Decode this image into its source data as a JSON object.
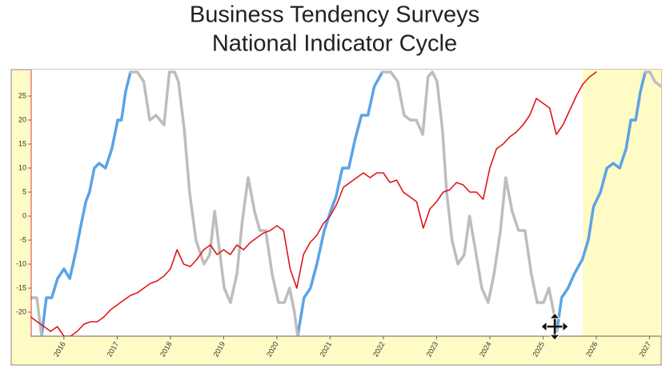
{
  "chart_data": {
    "type": "line",
    "title": [
      "Business Tendency Surveys",
      "National Indicator Cycle"
    ],
    "xlim": [
      2015.37,
      2027.22
    ],
    "ylim": [
      -25,
      30.5
    ],
    "xticks": [
      2016,
      2017,
      2018,
      2019,
      2020,
      2021,
      2022,
      2023,
      2024,
      2025,
      2026,
      2027
    ],
    "yticks": [
      -20,
      -15,
      -10,
      -5,
      0,
      5,
      10,
      15,
      20,
      25
    ],
    "shaded_from": 2025.75,
    "shade_color": "#fffbc4",
    "series": [
      {
        "color": "#5ba3e6",
        "x": [
          2015.58,
          2015.67,
          2015.77,
          2015.88,
          2016.0,
          2016.11,
          2016.23,
          2016.3,
          2016.41,
          2016.48,
          2016.57,
          2016.66,
          2016.78,
          2016.9,
          2017.01,
          2017.08,
          2017.16,
          2017.25,
          null,
          2020.39,
          2020.51,
          2020.63,
          2020.75,
          2020.89,
          2021.01,
          2021.11,
          2021.23,
          2021.35,
          2021.47,
          2021.59,
          2021.71,
          2021.83,
          2021.98,
          null,
          2025.26,
          2025.35,
          2025.47,
          2025.59,
          2025.74,
          2025.85,
          2025.95,
          2026.08,
          2026.2,
          2026.32,
          2026.44,
          2026.56,
          2026.65,
          2026.74,
          2026.83,
          2026.92
        ],
        "values": [
          -25,
          -17,
          -17,
          -13,
          -11,
          -13,
          -7,
          -3,
          3,
          5,
          10,
          11,
          10,
          14,
          20,
          20,
          26,
          30,
          null,
          -25,
          -17,
          -15,
          -10,
          -3,
          1,
          4,
          10,
          10,
          16,
          21,
          21,
          27,
          30,
          null,
          -24,
          -17,
          -15,
          -12,
          -9,
          -5,
          2,
          5,
          10,
          11,
          10,
          14,
          20,
          20,
          26,
          30
        ]
      },
      {
        "color": "#bdbdbd",
        "x": [
          2015.37,
          2015.49,
          2015.58,
          null,
          2017.25,
          2017.38,
          2017.5,
          2017.61,
          2017.73,
          2017.88,
          2017.98,
          2018.08,
          2018.15,
          2018.26,
          2018.36,
          2018.48,
          2018.63,
          2018.74,
          2018.83,
          2018.92,
          2019.01,
          2019.13,
          2019.25,
          2019.35,
          2019.46,
          2019.58,
          2019.68,
          2019.79,
          2019.91,
          2020.03,
          2020.14,
          2020.24,
          2020.33,
          2020.39,
          null,
          2021.98,
          2022.14,
          2022.27,
          2022.39,
          2022.51,
          2022.62,
          2022.74,
          2022.84,
          2022.92,
          2023.01,
          2023.11,
          2023.19,
          2023.29,
          2023.4,
          2023.52,
          2023.62,
          2023.73,
          2023.85,
          2023.97,
          2024.08,
          2024.2,
          2024.3,
          2024.42,
          2024.54,
          2024.66,
          2024.78,
          2024.89,
          2025.01,
          2025.11,
          2025.2,
          2025.26,
          null,
          2026.92,
          2027.01,
          2027.1,
          2027.22
        ],
        "values": [
          -17,
          -17,
          -25,
          null,
          30,
          30,
          28,
          20,
          21,
          19,
          30,
          30,
          28,
          18,
          5,
          -5,
          -10,
          -8,
          1,
          -7,
          -15,
          -18,
          -12,
          -1,
          8,
          1,
          -3,
          -3,
          -12,
          -18,
          -18,
          -15,
          -20,
          -25,
          null,
          30,
          30,
          28,
          21,
          20,
          20,
          17,
          29,
          30,
          28,
          18,
          5,
          -5,
          -10,
          -8,
          0,
          -7,
          -15,
          -18,
          -12,
          -3,
          8,
          1,
          -3,
          -3,
          -12,
          -18,
          -18,
          -15,
          -20,
          -24,
          null,
          30,
          30,
          28,
          27
        ]
      },
      {
        "color": "#e0141a",
        "x": [
          2015.375,
          2015.5,
          2015.625,
          2015.75,
          2015.875,
          2016,
          2016.125,
          2016.25,
          2016.375,
          2016.5,
          2016.625,
          2016.75,
          2016.875,
          2017,
          2017.125,
          2017.25,
          2017.375,
          2017.5,
          2017.625,
          2017.75,
          2017.875,
          2018,
          2018.125,
          2018.25,
          2018.375,
          2018.5,
          2018.625,
          2018.75,
          2018.875,
          2019,
          2019.125,
          2019.25,
          2019.375,
          2019.5,
          2019.625,
          2019.75,
          2019.875,
          2020,
          2020.125,
          2020.25,
          2020.375,
          2020.5,
          2020.625,
          2020.75,
          2020.875,
          2021,
          2021.125,
          2021.25,
          2021.375,
          2021.5,
          2021.625,
          2021.75,
          2021.875,
          2022,
          2022.125,
          2022.25,
          2022.375,
          2022.5,
          2022.625,
          2022.75,
          2022.875,
          2023,
          2023.125,
          2023.25,
          2023.375,
          2023.5,
          2023.625,
          2023.75,
          2023.875,
          2024,
          2024.125,
          2024.25,
          2024.375,
          2024.5,
          2024.625,
          2024.75,
          2024.875,
          2025,
          2025.125,
          2025.25,
          2025.375,
          2025.5,
          2025.625,
          2025.75,
          2025.875,
          2026
        ],
        "values": [
          -21,
          -22,
          -23,
          -24,
          -23,
          -25,
          -25,
          -24,
          -22.5,
          -22,
          -22,
          -21,
          -19.5,
          -18.5,
          -17.5,
          -16.5,
          -16,
          -15,
          -14,
          -13.5,
          -12.5,
          -11,
          -7,
          -10,
          -10.5,
          -9,
          -7,
          -6,
          -8,
          -7,
          -8,
          -6,
          -7,
          -5.5,
          -4.5,
          -3.5,
          -3,
          -2,
          -3,
          -11,
          -15,
          -8,
          -5.5,
          -4,
          -1.5,
          0,
          2.5,
          6,
          7,
          8,
          9,
          8,
          9,
          9,
          7,
          7.5,
          5,
          4,
          3,
          -2.5,
          1.5,
          3,
          5,
          5.5,
          7,
          6.5,
          5,
          5,
          3.5,
          10,
          14,
          15,
          16.5,
          17.5,
          19,
          21,
          24.5,
          23.5,
          22.5,
          17,
          19,
          22,
          25,
          27.5,
          29,
          30
        ]
      }
    ]
  }
}
